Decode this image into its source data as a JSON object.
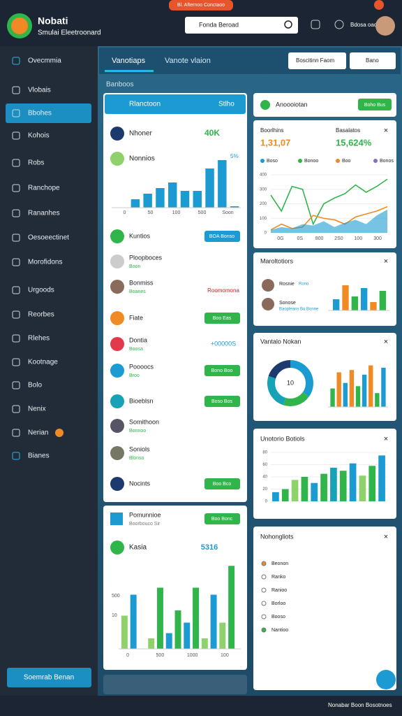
{
  "header": {
    "title": "Nobati",
    "subtitle": "Smulai Eleetroonard",
    "banner": "Bl. Afternoo Conctaoo",
    "search": "Fonda Beroad",
    "user_code": "Bdosa oaosp"
  },
  "sidebar": {
    "items": [
      "Ovecmmia",
      "Vlobais",
      "Bbohes",
      "Kohois",
      "Robs",
      "Ranchope",
      "Rananhes",
      "Oesoeectinet",
      "Morofidons",
      "Urgoods",
      "Reorbes",
      "Rlehes",
      "Kootnage",
      "Bolo",
      "Nenix",
      "Nerian",
      "Bianes"
    ],
    "button": "Soemrab Benan"
  },
  "tabs": [
    "Vanotiaps",
    "Vanote vlaion"
  ],
  "toolbar": [
    "Boscitinn Faom",
    "Bano"
  ],
  "section": "Banboos",
  "left_panel": {
    "header": "Rlanctoon",
    "header_action": "Stlho",
    "stats": [
      {
        "label": "Nhoner",
        "value": "40K"
      },
      {
        "label": "Nonnios",
        "value": "5%"
      }
    ],
    "chart": {
      "values": [
        3,
        5,
        7,
        9,
        6,
        6,
        14,
        17,
        0.5
      ],
      "ylim": [
        0,
        20
      ],
      "color": "#1b9bd1",
      "axis_labels": [
        "0",
        "50",
        "100",
        "500",
        "Soon"
      ]
    },
    "rows": [
      {
        "label": "Kuntios",
        "action": "BOA Bonso"
      },
      {
        "label": "Ploopboces",
        "sub": "Boon"
      },
      {
        "label": "Bonmiss",
        "sub": "Boanes",
        "tag": "Roomomona"
      },
      {
        "label": "Fiate",
        "action": "Boo Eas"
      },
      {
        "label": "Dontia",
        "sub": "Boosa",
        "value": "+00000S"
      },
      {
        "label": "Poooocs",
        "sub": "Broo",
        "action": "Bono Boo"
      },
      {
        "label": "Bioeblsn",
        "action": "Boso Bos"
      },
      {
        "label": "Somithoon",
        "sub": "Bonnoo"
      },
      {
        "label": "Soniols",
        "sub": "Blonso"
      },
      {
        "label": "Nocints",
        "action": "Boo Bco"
      }
    ]
  },
  "left_panel_2": {
    "label": "Pomunnioe",
    "sub": "Boorbouco Sir",
    "action": "Boo Bonc",
    "stat_label": "Kasia",
    "stat_value": "5316",
    "chart": {
      "values": [
        38,
        62,
        0,
        12,
        70,
        18,
        44,
        30,
        70,
        12,
        62,
        30,
        95
      ],
      "colors": [
        "#8fd16a",
        "#1b9bd1",
        "#1b9bd1",
        "#8fd16a",
        "#2fb54a",
        "#1b9bd1",
        "#2fb54a",
        "#1b9bd1",
        "#2fb54a",
        "#8fd16a",
        "#1b9bd1",
        "#8fd16a",
        "#2fb54a"
      ],
      "ylim": [
        0,
        100
      ],
      "axis_labels": [
        "0",
        "500",
        "1000",
        "100"
      ],
      "y_labels": [
        "500",
        "10"
      ]
    }
  },
  "right_cards": {
    "top": {
      "title": "Anoooiotan",
      "action": "Boho Bus"
    },
    "overview": {
      "metrics": [
        {
          "label": "Boorlhins",
          "value": "1,31,07"
        },
        {
          "label": "Basalatos",
          "value": "15,624%"
        }
      ],
      "legend": [
        "Boso",
        "Bonoo",
        "Boo",
        "Bonos"
      ],
      "chart": {
        "ylim": [
          0,
          400
        ],
        "yticks": [
          0,
          100,
          200,
          300,
          400
        ],
        "x_labels": [
          "0G",
          "0S",
          "800",
          "2S0",
          "100",
          "300"
        ],
        "series": [
          {
            "color": "#2fb54a",
            "values": [
              260,
              150,
              320,
              300,
              60,
              200,
              240,
              270,
              330,
              280,
              320,
              370
            ]
          },
          {
            "color": "#f08a24",
            "values": [
              20,
              60,
              30,
              40,
              120,
              100,
              90,
              60,
              110,
              130,
              150,
              180
            ]
          },
          {
            "color": "#1b9bd1",
            "values": [
              20,
              40,
              30,
              60,
              50,
              80,
              40,
              70,
              90,
              60,
              120,
              160
            ]
          }
        ]
      }
    },
    "people": {
      "title": "Maroltotiors",
      "items": [
        {
          "name": "Rosnie",
          "tag": "Rono"
        },
        {
          "name": "Sonose",
          "tag": "Baopleans Bo Bonne"
        }
      ],
      "chart": {
        "values": [
          20,
          45,
          25,
          40,
          15,
          35
        ],
        "colors": [
          "#1b9bd1",
          "#f08a24",
          "#2fb54a",
          "#1b9bd1",
          "#f08a24",
          "#2fb54a"
        ],
        "ylim": [
          0,
          50
        ]
      }
    },
    "donut": {
      "title": "Vantalo Nokan",
      "center": "10",
      "values": [
        35,
        20,
        25,
        20
      ],
      "colors": [
        "#1b9bd1",
        "#2fb54a",
        "#17a2b8",
        "#1c3a6e"
      ],
      "chart": {
        "values": [
          40,
          75,
          52,
          80,
          45,
          70,
          90,
          30,
          85
        ],
        "colors": [
          "#2fb54a",
          "#f08a24",
          "#1b9bd1",
          "#f08a24",
          "#2fb54a",
          "#1b9bd1",
          "#f08a24",
          "#2fb54a",
          "#1b9bd1"
        ],
        "ylim": [
          0,
          100
        ]
      }
    },
    "bars": {
      "title": "Unotorio Botiols",
      "chart": {
        "values": [
          15,
          20,
          35,
          40,
          30,
          45,
          55,
          50,
          62,
          42,
          58,
          75
        ],
        "colors": [
          "#1b9bd1",
          "#2fb54a",
          "#8fd16a",
          "#2fb54a",
          "#1b9bd1",
          "#2fb54a",
          "#17a2b8",
          "#2fb54a",
          "#1b9bd1",
          "#8fd16a",
          "#2fb54a",
          "#1b9bd1"
        ],
        "ylim": [
          0,
          80
        ],
        "yticks": [
          0,
          20,
          40,
          60,
          80
        ]
      }
    },
    "highlights": {
      "title": "Nohongliots",
      "items": [
        "Beonon",
        "Ranko",
        "Ranioo",
        "Borloo",
        "Booso",
        "Nantioo"
      ]
    }
  },
  "footer": {
    "status": "Nonabar Boon Bosotnoes"
  }
}
